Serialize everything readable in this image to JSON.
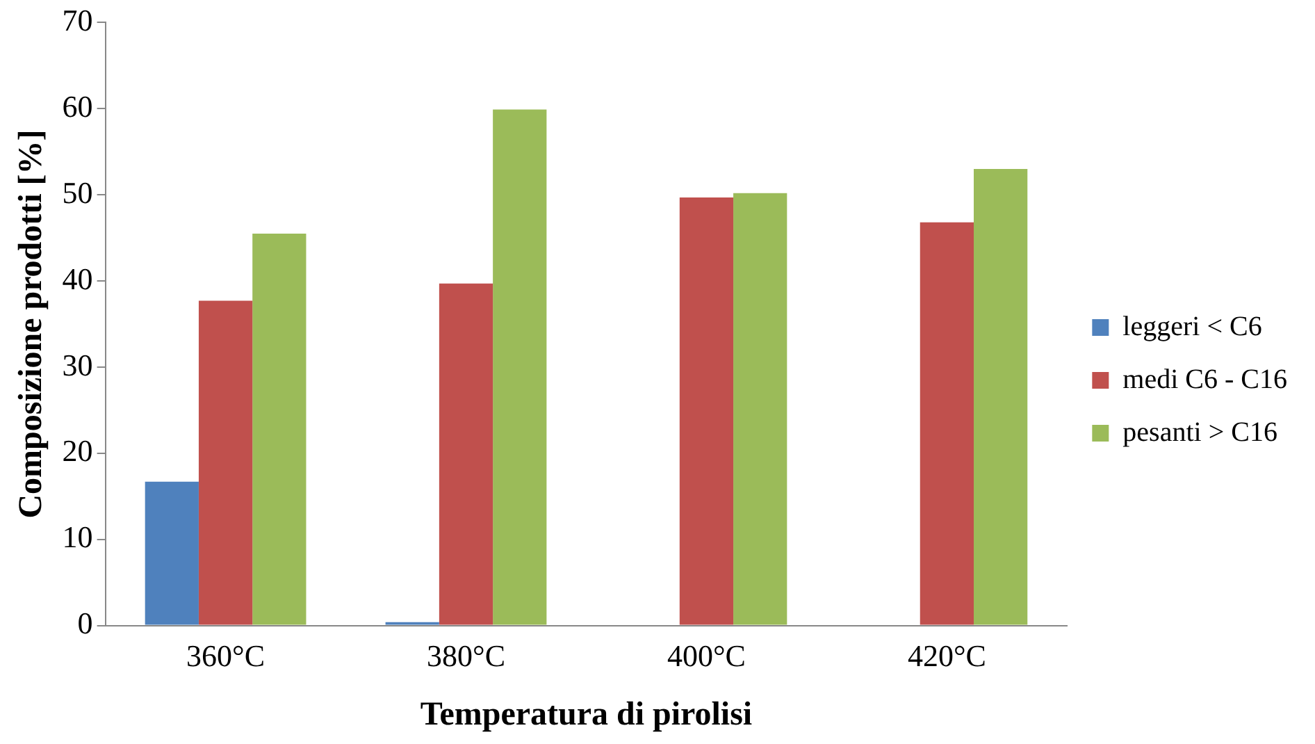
{
  "chart_data": {
    "type": "bar",
    "xlabel": "Temperatura di pirolisi",
    "ylabel": "Composizione prodotti [%]",
    "categories": [
      "360°C",
      "380°C",
      "400°C",
      "420°C"
    ],
    "series": [
      {
        "name": "leggeri < C6",
        "color": "#4f81bd",
        "values": [
          16.7,
          0.4,
          0,
          0
        ]
      },
      {
        "name": "medi C6 - C16",
        "color": "#c0504d",
        "values": [
          37.7,
          39.7,
          49.7,
          46.8
        ]
      },
      {
        "name": "pesanti > C16",
        "color": "#9bbb59",
        "values": [
          45.5,
          59.9,
          50.2,
          53.0
        ]
      }
    ],
    "ylim": [
      0,
      70
    ],
    "yticks": [
      0,
      10,
      20,
      30,
      40,
      50,
      60,
      70
    ],
    "grid": false,
    "legend": "right"
  }
}
